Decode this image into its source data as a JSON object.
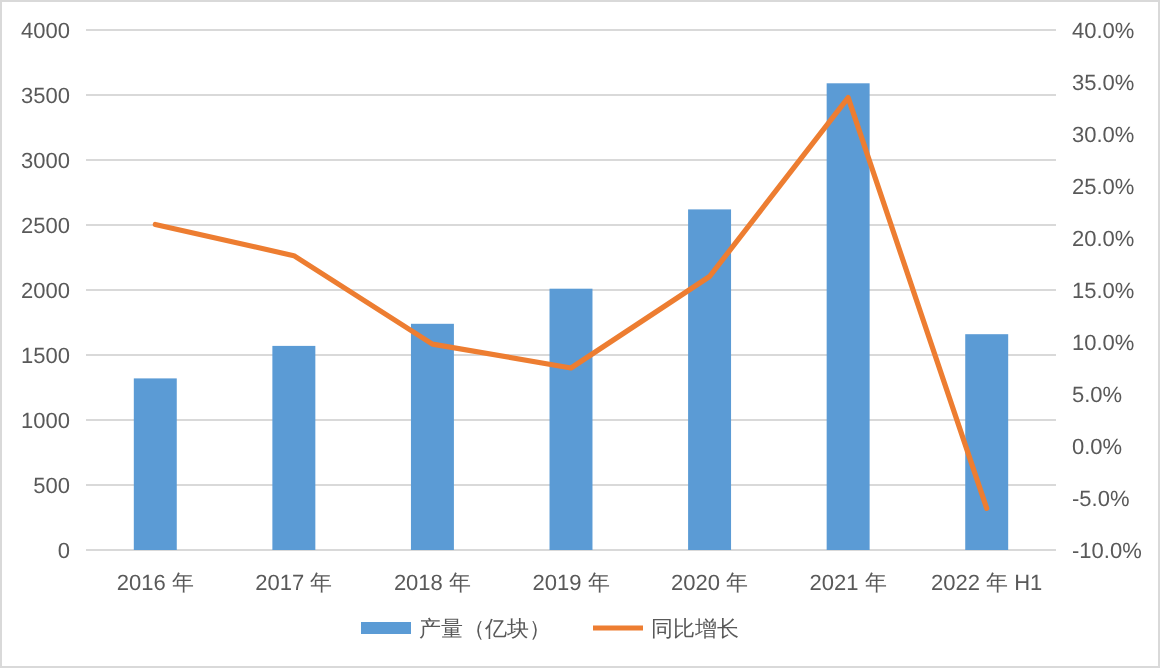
{
  "chart_data": {
    "type": "bar",
    "categories": [
      "2016 年",
      "2017 年",
      "2018 年",
      "2019 年",
      "2020 年",
      "2021 年",
      "2022 年 H1"
    ],
    "series": [
      {
        "name": "产量（亿块）",
        "color": "#5b9bd5",
        "values": [
          1320,
          1570,
          1740,
          2010,
          2620,
          3590,
          1660
        ]
      },
      {
        "name": "同比增长",
        "type": "line",
        "axis": "y2",
        "color": "#ed7d31",
        "values": [
          21.3,
          18.3,
          9.8,
          7.5,
          16.3,
          33.5,
          -6.0
        ]
      }
    ],
    "ylim": [
      0,
      4000
    ],
    "yticks": [
      0,
      500,
      1000,
      1500,
      2000,
      2500,
      3000,
      3500,
      4000
    ],
    "y2lim": [
      -10,
      40
    ],
    "y2ticks": [
      {
        "value": -10,
        "label": "-10.0%"
      },
      {
        "value": -5,
        "label": "-5.0%"
      },
      {
        "value": 0,
        "label": "0.0%"
      },
      {
        "value": 5,
        "label": "5.0%"
      },
      {
        "value": 10,
        "label": "10.0%"
      },
      {
        "value": 15,
        "label": "15.0%"
      },
      {
        "value": 20,
        "label": "20.0%"
      },
      {
        "value": 25,
        "label": "25.0%"
      },
      {
        "value": 30,
        "label": "30.0%"
      },
      {
        "value": 35,
        "label": "35.0%"
      },
      {
        "value": 40,
        "label": "40.0%"
      }
    ],
    "grid": "y",
    "legend": "bottom",
    "marker": "none",
    "line_style": "solid"
  }
}
